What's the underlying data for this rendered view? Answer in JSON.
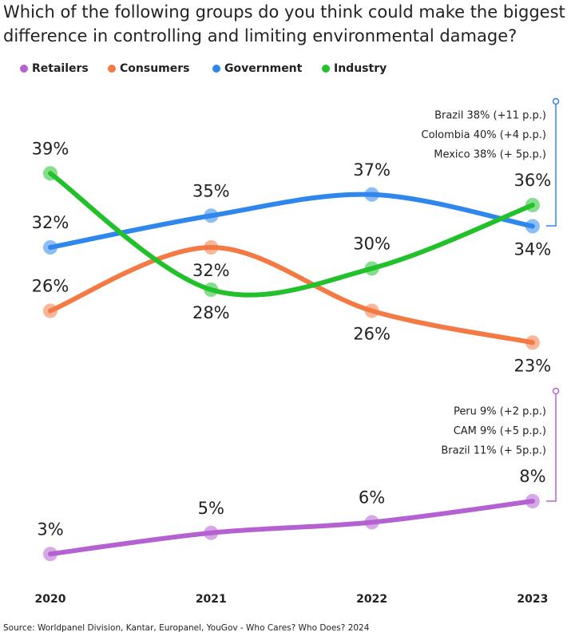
{
  "chart_data": {
    "type": "line",
    "title": "Which of the following groups do you think could make the biggest difference in controlling and limiting environmental damage?",
    "categories": [
      "2020",
      "2021",
      "2022",
      "2023"
    ],
    "series": [
      {
        "name": "Retailers",
        "color": "#b462d2",
        "values": [
          3,
          5,
          6,
          8
        ],
        "value_labels": [
          "3%",
          "5%",
          "6%",
          "8%"
        ]
      },
      {
        "name": "Consumers",
        "color": "#f47a45",
        "values": [
          26,
          32,
          26,
          23
        ],
        "value_labels": [
          "26%",
          "32%",
          "26%",
          "23%"
        ]
      },
      {
        "name": "Government",
        "color": "#2f86ec",
        "values": [
          32,
          35,
          37,
          34
        ],
        "value_labels": [
          "32%",
          "35%",
          "37%",
          "34%"
        ]
      },
      {
        "name": "Industry",
        "color": "#22c12c",
        "values": [
          39,
          28,
          30,
          36
        ],
        "value_labels": [
          "39%",
          "28%",
          "30%",
          "36%"
        ]
      }
    ],
    "annotations": [
      {
        "lines": [
          "Brazil 38% (+11 p.p.)",
          "Colombia 40% (+4 p.p.)",
          "Mexico 38% (+ 5p.p.)"
        ]
      },
      {
        "lines": [
          "Peru 9% (+2 p.p.)",
          "CAM 9% (+5 p.p.)",
          "Brazil 11% (+ 5p.p.)"
        ]
      }
    ],
    "source": "Source: Worldpanel Division, Kantar, Europanel, YouGov - Who Cares? Who Does? 2024"
  }
}
